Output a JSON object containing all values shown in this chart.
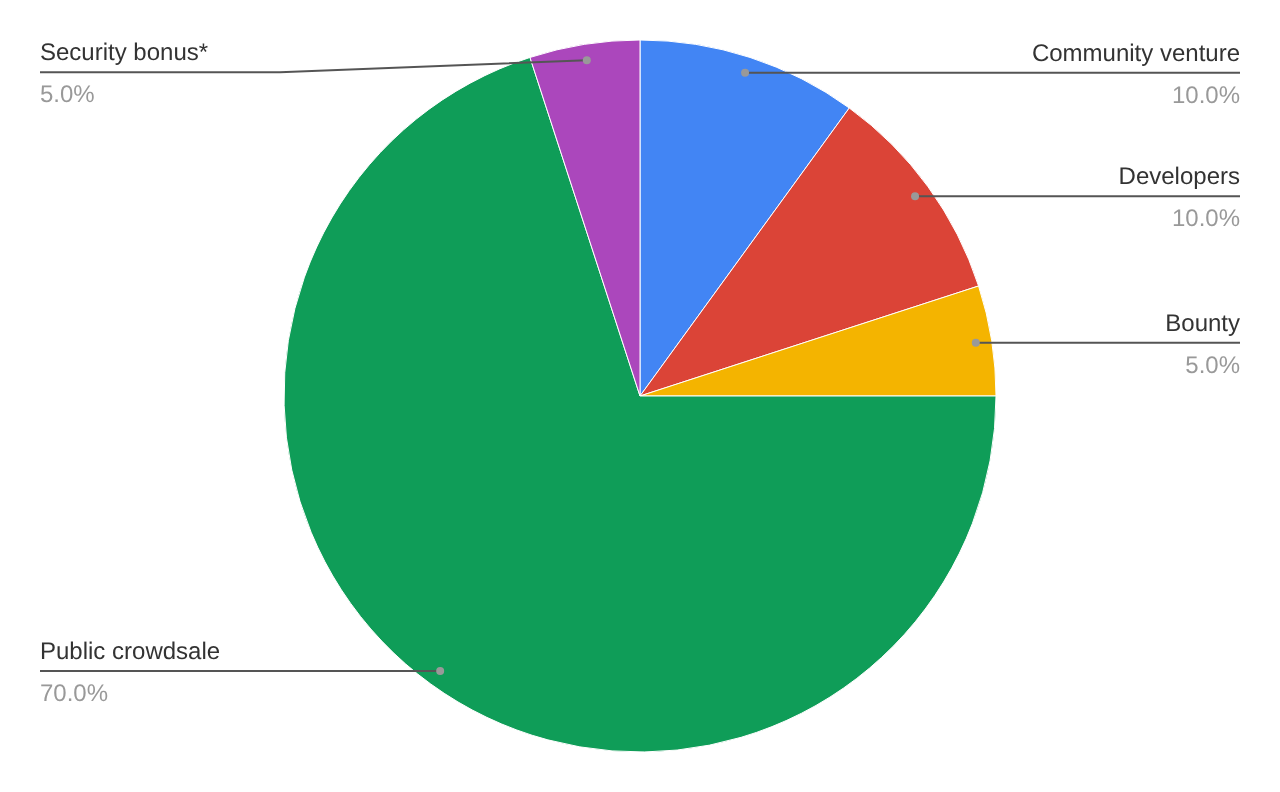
{
  "chart_data": {
    "type": "pie",
    "categories": [
      "Community venture",
      "Developers",
      "Bounty",
      "Public crowdsale",
      "Security bonus*"
    ],
    "values": [
      10,
      10,
      5,
      70,
      5
    ],
    "value_labels": [
      "10.0%",
      "10.0%",
      "5.0%",
      "70.0%",
      "5.0%"
    ],
    "colors": [
      "#4285f4",
      "#db4437",
      "#f4b400",
      "#0f9d58",
      "#ab47bc"
    ]
  }
}
